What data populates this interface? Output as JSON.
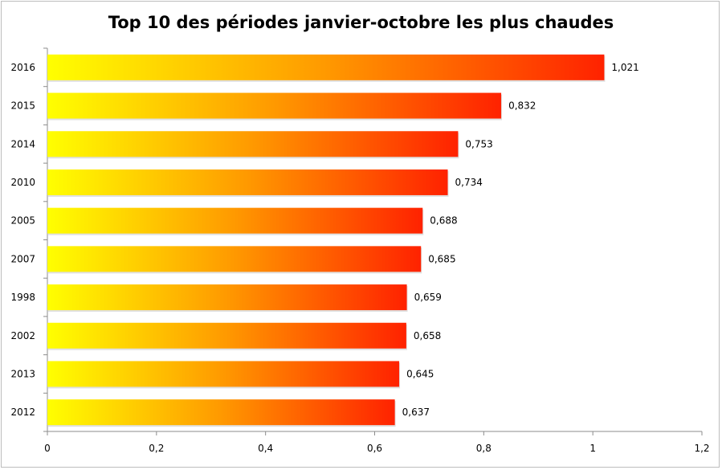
{
  "chart_data": {
    "type": "bar",
    "orientation": "horizontal",
    "title": "Top 10 des périodes janvier-octobre les plus chaudes",
    "categories": [
      "2016",
      "2015",
      "2014",
      "2010",
      "2005",
      "2007",
      "1998",
      "2002",
      "2013",
      "2012"
    ],
    "values": [
      1.021,
      0.832,
      0.753,
      0.734,
      0.688,
      0.685,
      0.659,
      0.658,
      0.645,
      0.637
    ],
    "data_labels": [
      "1,021",
      "0,832",
      "0,753",
      "0,734",
      "0,688",
      "0,685",
      "0,659",
      "0,658",
      "0,645",
      "0,637"
    ],
    "xlim": [
      0,
      1.2
    ],
    "xticks": [
      0,
      0.2,
      0.4,
      0.6,
      0.8,
      1,
      1.2
    ],
    "xtick_labels": [
      "0",
      "0,2",
      "0,4",
      "0,6",
      "0,8",
      "1",
      "1,2"
    ],
    "xlabel": "",
    "ylabel": "",
    "grid": false,
    "legend": "none",
    "colors": {
      "gradient_start": "#ffff00",
      "gradient_mid": "#ff9900",
      "gradient_end": "#ff2200",
      "axis": "#8c8c8c"
    }
  }
}
